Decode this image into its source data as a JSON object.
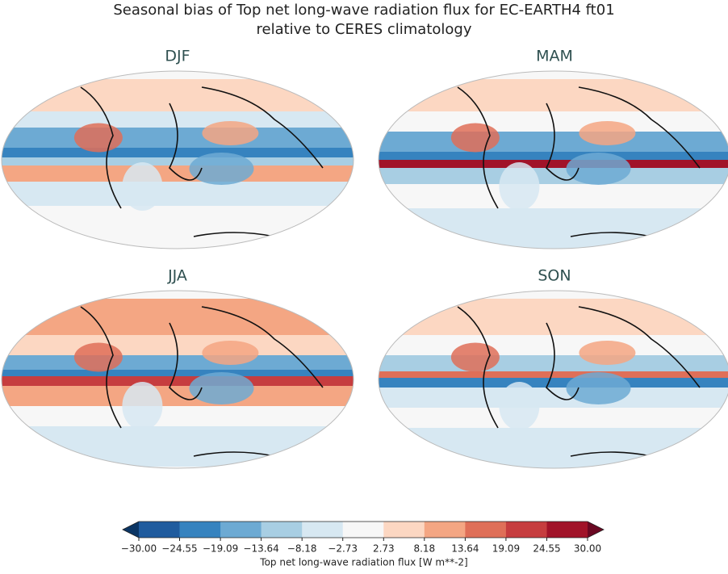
{
  "title": [
    "Seasonal bias of Top net long-wave radiation flux for EC-EARTH4 ft01",
    "relative to CERES climatology"
  ],
  "panels": [
    {
      "label": "DJF"
    },
    {
      "label": "MAM"
    },
    {
      "label": "JJA"
    },
    {
      "label": "SON"
    }
  ],
  "colorbar": {
    "ticks": [
      {
        "value": -30,
        "label": "−30.00"
      },
      {
        "value": -24.55,
        "label": "−24.55"
      },
      {
        "value": -19.09,
        "label": "−19.09"
      },
      {
        "value": -13.64,
        "label": "−13.64"
      },
      {
        "value": -8.18,
        "label": "−8.18"
      },
      {
        "value": -2.73,
        "label": "−2.73"
      },
      {
        "value": 2.73,
        "label": "2.73"
      },
      {
        "value": 8.18,
        "label": "8.18"
      },
      {
        "value": 13.64,
        "label": "13.64"
      },
      {
        "value": 19.09,
        "label": "19.09"
      },
      {
        "value": 24.55,
        "label": "24.55"
      },
      {
        "value": 30,
        "label": "30.00"
      }
    ],
    "colors": [
      "#1f5b9e",
      "#3683bf",
      "#6daad3",
      "#a8cee3",
      "#d7e8f2",
      "#f7f7f7",
      "#fcd7c2",
      "#f4a683",
      "#df6f58",
      "#c63d3f",
      "#a11329"
    ],
    "under_color": "#0b3564",
    "over_color": "#6a0822",
    "label": "Top net long-wave radiation flux [W m**-2]"
  }
}
